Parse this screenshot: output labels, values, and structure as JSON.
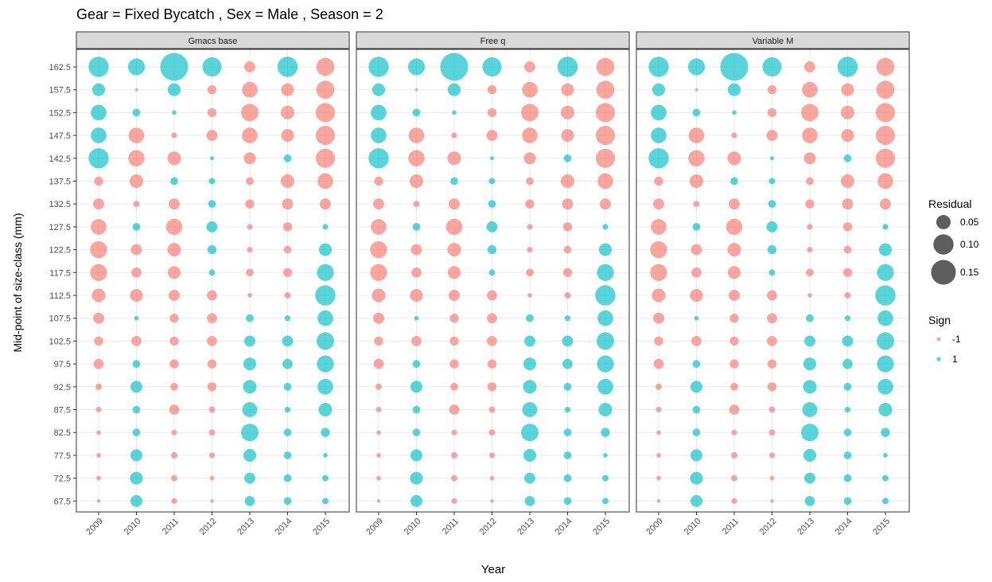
{
  "chart_data": {
    "type": "scatter",
    "title": "Gear = Fixed Bycatch , Sex = Male , Season = 2",
    "xlabel": "Year",
    "ylabel": "Mid-point of size-class (mm)",
    "years": [
      "2009",
      "2010",
      "2011",
      "2012",
      "2013",
      "2014",
      "2015"
    ],
    "size_classes": [
      "162.5",
      "157.5",
      "152.5",
      "147.5",
      "142.5",
      "137.5",
      "132.5",
      "127.5",
      "122.5",
      "117.5",
      "112.5",
      "107.5",
      "102.5",
      "97.5",
      "92.5",
      "87.5",
      "82.5",
      "77.5",
      "72.5",
      "67.5"
    ],
    "grid": true,
    "legend_position": "right",
    "legend": {
      "size_title": "Residual",
      "size_entries": [
        {
          "label": "0.05",
          "value": 0.05
        },
        {
          "label": "0.10",
          "value": 0.1
        },
        {
          "label": "0.15",
          "value": 0.15
        }
      ],
      "color_title": "Sign",
      "color_entries": [
        {
          "label": "-1",
          "color": "#f8766d"
        },
        {
          "label": "1",
          "color": "#00bfc4"
        }
      ]
    },
    "panels": [
      {
        "name": "Gmacs base",
        "residuals": [
          [
            0.1,
            0.07,
            0.19,
            0.09,
            0.03,
            0.1,
            0.08
          ],
          [
            0.04,
            0.002,
            0.04,
            0.02,
            0.06,
            0.04,
            0.08
          ],
          [
            0.06,
            0.015,
            0.005,
            0.02,
            0.075,
            0.045,
            0.09
          ],
          [
            0.06,
            0.06,
            0.008,
            0.03,
            0.06,
            0.04,
            0.09
          ],
          [
            0.1,
            0.065,
            0.045,
            0.004,
            0.035,
            0.015,
            0.09
          ],
          [
            0.02,
            0.045,
            0.015,
            0.01,
            0.015,
            0.045,
            0.06
          ],
          [
            0.03,
            0.01,
            0.03,
            0.015,
            0.02,
            0.03,
            0.03
          ],
          [
            0.06,
            0.015,
            0.065,
            0.03,
            0.008,
            0.02,
            0.008
          ],
          [
            0.07,
            0.03,
            0.045,
            0.02,
            0.008,
            0.015,
            0.04
          ],
          [
            0.07,
            0.025,
            0.04,
            0.01,
            0.015,
            0.02,
            0.07
          ],
          [
            0.045,
            0.04,
            0.03,
            0.025,
            0.005,
            0.01,
            0.1
          ],
          [
            0.03,
            0.005,
            0.02,
            0.025,
            0.015,
            0.008,
            0.06
          ],
          [
            0.02,
            0.025,
            0.02,
            0.025,
            0.03,
            0.03,
            0.075
          ],
          [
            0.025,
            0.015,
            0.02,
            0.02,
            0.04,
            0.025,
            0.07
          ],
          [
            0.01,
            0.035,
            0.015,
            0.02,
            0.045,
            0.015,
            0.06
          ],
          [
            0.008,
            0.015,
            0.025,
            0.01,
            0.055,
            0.008,
            0.045
          ],
          [
            0.005,
            0.015,
            0.008,
            0.01,
            0.075,
            0.015,
            0.02
          ],
          [
            0.005,
            0.035,
            0.01,
            0.008,
            0.04,
            0.015,
            0.005
          ],
          [
            0.005,
            0.04,
            0.01,
            0.005,
            0.03,
            0.015,
            0.01
          ],
          [
            0.003,
            0.035,
            0.008,
            0.003,
            0.025,
            0.015,
            0.01
          ]
        ],
        "signs": [
          [
            1,
            1,
            1,
            1,
            -1,
            1,
            -1
          ],
          [
            1,
            -1,
            1,
            -1,
            -1,
            -1,
            -1
          ],
          [
            1,
            1,
            1,
            -1,
            -1,
            -1,
            -1
          ],
          [
            1,
            -1,
            -1,
            -1,
            -1,
            -1,
            -1
          ],
          [
            1,
            -1,
            -1,
            1,
            -1,
            1,
            -1
          ],
          [
            -1,
            -1,
            1,
            1,
            -1,
            -1,
            -1
          ],
          [
            -1,
            -1,
            -1,
            1,
            -1,
            -1,
            -1
          ],
          [
            -1,
            1,
            -1,
            1,
            -1,
            -1,
            1
          ],
          [
            -1,
            -1,
            -1,
            1,
            -1,
            -1,
            1
          ],
          [
            -1,
            -1,
            -1,
            1,
            -1,
            -1,
            1
          ],
          [
            -1,
            -1,
            -1,
            -1,
            -1,
            -1,
            1
          ],
          [
            -1,
            1,
            -1,
            -1,
            1,
            1,
            1
          ],
          [
            -1,
            -1,
            -1,
            -1,
            1,
            1,
            1
          ],
          [
            -1,
            1,
            -1,
            -1,
            1,
            1,
            1
          ],
          [
            -1,
            1,
            -1,
            -1,
            1,
            1,
            1
          ],
          [
            -1,
            1,
            -1,
            -1,
            1,
            1,
            1
          ],
          [
            -1,
            1,
            -1,
            -1,
            1,
            1,
            1
          ],
          [
            -1,
            1,
            -1,
            -1,
            1,
            1,
            1
          ],
          [
            -1,
            1,
            -1,
            -1,
            1,
            1,
            1
          ],
          [
            -1,
            1,
            -1,
            -1,
            1,
            1,
            1
          ]
        ]
      },
      {
        "name": "Free q",
        "residuals": [
          [
            0.1,
            0.07,
            0.19,
            0.09,
            0.03,
            0.1,
            0.08
          ],
          [
            0.04,
            0.002,
            0.04,
            0.02,
            0.06,
            0.04,
            0.08
          ],
          [
            0.06,
            0.015,
            0.005,
            0.02,
            0.075,
            0.045,
            0.09
          ],
          [
            0.06,
            0.06,
            0.008,
            0.03,
            0.06,
            0.04,
            0.09
          ],
          [
            0.1,
            0.065,
            0.045,
            0.004,
            0.035,
            0.015,
            0.09
          ],
          [
            0.02,
            0.045,
            0.015,
            0.01,
            0.015,
            0.045,
            0.06
          ],
          [
            0.03,
            0.01,
            0.03,
            0.015,
            0.02,
            0.03,
            0.03
          ],
          [
            0.06,
            0.015,
            0.065,
            0.03,
            0.008,
            0.02,
            0.008
          ],
          [
            0.07,
            0.03,
            0.045,
            0.02,
            0.008,
            0.015,
            0.04
          ],
          [
            0.07,
            0.025,
            0.04,
            0.01,
            0.015,
            0.02,
            0.07
          ],
          [
            0.045,
            0.04,
            0.03,
            0.025,
            0.005,
            0.01,
            0.1
          ],
          [
            0.03,
            0.005,
            0.02,
            0.025,
            0.015,
            0.008,
            0.06
          ],
          [
            0.02,
            0.025,
            0.02,
            0.025,
            0.03,
            0.03,
            0.075
          ],
          [
            0.025,
            0.015,
            0.02,
            0.02,
            0.04,
            0.025,
            0.07
          ],
          [
            0.01,
            0.035,
            0.015,
            0.02,
            0.045,
            0.015,
            0.06
          ],
          [
            0.008,
            0.015,
            0.025,
            0.01,
            0.055,
            0.008,
            0.045
          ],
          [
            0.005,
            0.015,
            0.008,
            0.01,
            0.075,
            0.015,
            0.02
          ],
          [
            0.005,
            0.035,
            0.01,
            0.008,
            0.04,
            0.015,
            0.005
          ],
          [
            0.005,
            0.04,
            0.01,
            0.005,
            0.03,
            0.015,
            0.01
          ],
          [
            0.003,
            0.035,
            0.008,
            0.003,
            0.025,
            0.015,
            0.01
          ]
        ],
        "signs": [
          [
            1,
            1,
            1,
            1,
            -1,
            1,
            -1
          ],
          [
            1,
            -1,
            1,
            -1,
            -1,
            -1,
            -1
          ],
          [
            1,
            1,
            1,
            -1,
            -1,
            -1,
            -1
          ],
          [
            1,
            -1,
            -1,
            -1,
            -1,
            -1,
            -1
          ],
          [
            1,
            -1,
            -1,
            1,
            -1,
            1,
            -1
          ],
          [
            -1,
            -1,
            1,
            1,
            -1,
            -1,
            -1
          ],
          [
            -1,
            -1,
            -1,
            1,
            -1,
            -1,
            -1
          ],
          [
            -1,
            1,
            -1,
            1,
            -1,
            -1,
            1
          ],
          [
            -1,
            -1,
            -1,
            1,
            -1,
            -1,
            1
          ],
          [
            -1,
            -1,
            -1,
            1,
            -1,
            -1,
            1
          ],
          [
            -1,
            -1,
            -1,
            -1,
            -1,
            -1,
            1
          ],
          [
            -1,
            1,
            -1,
            -1,
            1,
            1,
            1
          ],
          [
            -1,
            -1,
            -1,
            -1,
            1,
            1,
            1
          ],
          [
            -1,
            1,
            -1,
            -1,
            1,
            1,
            1
          ],
          [
            -1,
            1,
            -1,
            -1,
            1,
            1,
            1
          ],
          [
            -1,
            1,
            -1,
            -1,
            1,
            1,
            1
          ],
          [
            -1,
            1,
            -1,
            -1,
            1,
            1,
            1
          ],
          [
            -1,
            1,
            -1,
            -1,
            1,
            1,
            1
          ],
          [
            -1,
            1,
            -1,
            -1,
            1,
            1,
            1
          ],
          [
            -1,
            1,
            -1,
            -1,
            1,
            1,
            1
          ]
        ]
      },
      {
        "name": "Variable M",
        "residuals": [
          [
            0.1,
            0.07,
            0.19,
            0.09,
            0.03,
            0.1,
            0.08
          ],
          [
            0.04,
            0.002,
            0.04,
            0.02,
            0.06,
            0.04,
            0.08
          ],
          [
            0.06,
            0.015,
            0.005,
            0.02,
            0.075,
            0.045,
            0.09
          ],
          [
            0.06,
            0.06,
            0.008,
            0.03,
            0.06,
            0.04,
            0.09
          ],
          [
            0.1,
            0.065,
            0.045,
            0.004,
            0.035,
            0.015,
            0.09
          ],
          [
            0.02,
            0.045,
            0.015,
            0.01,
            0.015,
            0.045,
            0.06
          ],
          [
            0.03,
            0.01,
            0.03,
            0.015,
            0.02,
            0.03,
            0.03
          ],
          [
            0.06,
            0.015,
            0.065,
            0.03,
            0.008,
            0.02,
            0.008
          ],
          [
            0.07,
            0.03,
            0.045,
            0.02,
            0.008,
            0.015,
            0.04
          ],
          [
            0.07,
            0.025,
            0.04,
            0.01,
            0.015,
            0.02,
            0.07
          ],
          [
            0.045,
            0.04,
            0.03,
            0.025,
            0.005,
            0.01,
            0.1
          ],
          [
            0.03,
            0.005,
            0.02,
            0.025,
            0.015,
            0.008,
            0.06
          ],
          [
            0.02,
            0.025,
            0.02,
            0.025,
            0.03,
            0.03,
            0.075
          ],
          [
            0.025,
            0.015,
            0.02,
            0.02,
            0.04,
            0.025,
            0.07
          ],
          [
            0.01,
            0.035,
            0.015,
            0.02,
            0.045,
            0.015,
            0.06
          ],
          [
            0.008,
            0.015,
            0.025,
            0.01,
            0.055,
            0.008,
            0.045
          ],
          [
            0.005,
            0.015,
            0.008,
            0.01,
            0.075,
            0.015,
            0.02
          ],
          [
            0.005,
            0.035,
            0.01,
            0.008,
            0.04,
            0.015,
            0.005
          ],
          [
            0.005,
            0.04,
            0.01,
            0.005,
            0.03,
            0.015,
            0.01
          ],
          [
            0.003,
            0.035,
            0.008,
            0.003,
            0.025,
            0.015,
            0.01
          ]
        ],
        "signs": [
          [
            1,
            1,
            1,
            1,
            -1,
            1,
            -1
          ],
          [
            1,
            -1,
            1,
            -1,
            -1,
            -1,
            -1
          ],
          [
            1,
            1,
            1,
            -1,
            -1,
            -1,
            -1
          ],
          [
            1,
            -1,
            -1,
            -1,
            -1,
            -1,
            -1
          ],
          [
            1,
            -1,
            -1,
            1,
            -1,
            1,
            -1
          ],
          [
            -1,
            -1,
            1,
            1,
            -1,
            -1,
            -1
          ],
          [
            -1,
            -1,
            -1,
            1,
            -1,
            -1,
            -1
          ],
          [
            -1,
            1,
            -1,
            1,
            -1,
            -1,
            1
          ],
          [
            -1,
            -1,
            -1,
            1,
            -1,
            -1,
            1
          ],
          [
            -1,
            -1,
            -1,
            1,
            -1,
            -1,
            1
          ],
          [
            -1,
            -1,
            -1,
            -1,
            -1,
            -1,
            1
          ],
          [
            -1,
            1,
            -1,
            -1,
            1,
            1,
            1
          ],
          [
            -1,
            -1,
            -1,
            -1,
            1,
            1,
            1
          ],
          [
            -1,
            1,
            -1,
            -1,
            1,
            1,
            1
          ],
          [
            -1,
            1,
            -1,
            -1,
            1,
            1,
            1
          ],
          [
            -1,
            1,
            -1,
            -1,
            1,
            1,
            1
          ],
          [
            -1,
            1,
            -1,
            -1,
            1,
            1,
            1
          ],
          [
            -1,
            1,
            -1,
            -1,
            1,
            1,
            1
          ],
          [
            -1,
            1,
            -1,
            -1,
            1,
            1,
            1
          ],
          [
            -1,
            1,
            -1,
            -1,
            1,
            1,
            1
          ]
        ]
      }
    ]
  }
}
